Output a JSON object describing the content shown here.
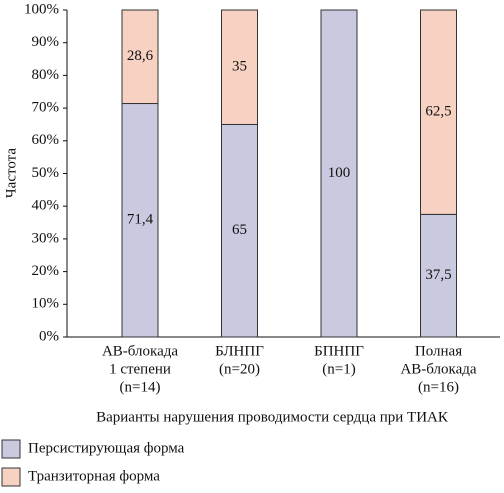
{
  "chart_data": {
    "type": "stacked-bar",
    "y_label": "Частота",
    "x_label": "Варианты нарушения проводимости сердца при ТИАК",
    "categories": [
      [
        "АВ-блокада",
        "1 степени",
        "(n=14)"
      ],
      [
        "БЛНПГ",
        "(n=20)"
      ],
      [
        "БПНПГ",
        "(n=1)"
      ],
      [
        "Полная",
        "АВ-блокада",
        "(n=16)"
      ]
    ],
    "series": [
      {
        "name": "Персистирующая форма",
        "color": "#c9c9e0",
        "values": [
          71.4,
          65,
          100,
          37.5
        ],
        "value_labels": [
          "71,4",
          "65",
          "100",
          "37,5"
        ]
      },
      {
        "name": "Транзиторная форма",
        "color": "#f7d2c2",
        "values": [
          28.6,
          35,
          0,
          62.5
        ],
        "value_labels": [
          "28,6",
          "35",
          null,
          "62,5"
        ]
      }
    ],
    "ylim": [
      0,
      100
    ],
    "yticks": [
      {
        "value": 0,
        "label": "0%"
      },
      {
        "value": 10,
        "label": "10%"
      },
      {
        "value": 20,
        "label": "20%"
      },
      {
        "value": 30,
        "label": "30%"
      },
      {
        "value": 40,
        "label": "40%"
      },
      {
        "value": 50,
        "label": "50%"
      },
      {
        "value": 60,
        "label": "60%"
      },
      {
        "value": 70,
        "label": "70%"
      },
      {
        "value": 80,
        "label": "80%"
      },
      {
        "value": 90,
        "label": "90%"
      },
      {
        "value": 100,
        "label": "100%"
      }
    ],
    "grid": false
  }
}
